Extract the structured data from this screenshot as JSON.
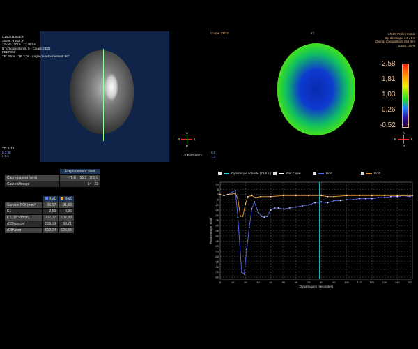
{
  "left_view": {
    "info": [
      "C10021180373",
      "26-avr.-1982 , F",
      "12-déc.-2019 / 13:46:54",
      "N° d'acquisition 8, 6 - Coupe 23/32",
      "FEEPI/M",
      "TE: 30ms - TR 2,0s - Angle de retournement 90°"
    ],
    "bottom": [
      "TD: 1:19",
      "0.3 08",
      "L 0.5"
    ],
    "orient": {
      "a": "A",
      "p": "P",
      "r": "R",
      "l": "L"
    },
    "orient_label": "LE P-51 H112"
  },
  "right_view": {
    "slice": "Coupe 23/32",
    "center_label": "K1",
    "info": [
      "I.R.M. Paris-Hopital",
      "Ep de coupe 4.0 / 0.0",
      "Champ d'acquisition 256 mm",
      "Zoom 100%"
    ],
    "bottom_left": [
      "0.0",
      "1.3"
    ],
    "colorbar": {
      "labels": [
        "2,58",
        "1,81",
        "1,03",
        "0,26",
        "-0,52"
      ]
    },
    "orient": {
      "a": "A",
      "p": "P",
      "r": "R",
      "l": "L"
    }
  },
  "pixel_table": {
    "header": "Emplacement pixel",
    "rows": [
      {
        "label": "Cadre patient (mm)",
        "value": "-75,6 , -55,2 , 109,9"
      },
      {
        "label": "Cadre d'image",
        "value": "64 , 23"
      }
    ]
  },
  "roi_table": {
    "headers": [
      "Roi1",
      "Roi2"
    ],
    "rows": [
      {
        "label": "Surface ROI (mm²)",
        "v": [
          "36,17",
          "31,83"
        ]
      },
      {
        "label": "K1",
        "v": [
          "2,53",
          "0,36"
        ]
      },
      {
        "label": "K2 [10^-3/min]",
        "v": [
          "717,77",
          "102,88"
        ]
      },
      {
        "label": "rCBVuncorr",
        "v": [
          "519,19",
          "69,21"
        ]
      },
      {
        "label": "rCBVcorr",
        "v": [
          "912,24",
          "125,55"
        ]
      }
    ]
  },
  "legend": {
    "current": "Dynamique actuelle (78,6 s )",
    "ref": "Ref Curve",
    "roi1": "Roi1",
    "roi2": "Roi2"
  },
  "colors": {
    "roi1": "#5060e0",
    "roi2": "#e0902a",
    "cursor": "#30c8c8"
  },
  "chart_data": {
    "type": "line",
    "xlabel": "Dynamiques [secondes]",
    "ylabel": "Pourcentage relatif",
    "xlim": [
      0,
      152
    ],
    "ylim": [
      -82,
      12
    ],
    "xticks": [
      0,
      10,
      20,
      30,
      40,
      50,
      60,
      70,
      80,
      90,
      100,
      110,
      120,
      130,
      140,
      150
    ],
    "yticks": [
      10,
      5,
      0,
      -5,
      -10,
      -15,
      -20,
      -25,
      -30,
      -35,
      -40,
      -45,
      -50,
      -55,
      -60,
      -65,
      -70,
      -75,
      -80
    ],
    "cursor_x": 78.6,
    "grid": true,
    "series": [
      {
        "name": "Roi1",
        "x": [
          0,
          3,
          6,
          12,
          14,
          17,
          19,
          21,
          23,
          25,
          27,
          30,
          33,
          35,
          37,
          40,
          43,
          46,
          50,
          55,
          60,
          65,
          70,
          75,
          80,
          85,
          90,
          95,
          100,
          105,
          110,
          115,
          120,
          125,
          130,
          135,
          140,
          145,
          150,
          152
        ],
        "y": [
          0,
          -1,
          0,
          4,
          -22,
          -75,
          -77,
          -53,
          -32,
          -14,
          -7,
          -17,
          -21,
          -22,
          -21,
          -15,
          -13,
          -13,
          -14,
          -13,
          -12,
          -11,
          -10,
          -8,
          -7,
          -8,
          -6,
          -6,
          -5,
          -5,
          -4,
          -4,
          -4,
          -3,
          -3,
          -2,
          -2,
          -1,
          -2,
          -1
        ]
      },
      {
        "name": "Roi2",
        "x": [
          0,
          3,
          6,
          12,
          14,
          16,
          18,
          20,
          22,
          25,
          28,
          32,
          40,
          50,
          60,
          70,
          80,
          85,
          90,
          100,
          110,
          120,
          130,
          140,
          150,
          152
        ],
        "y": [
          0,
          -1,
          0,
          1,
          -4,
          -21,
          -21,
          -9,
          -2,
          -1,
          -3,
          -2,
          -2,
          -1,
          -1,
          -1,
          -1,
          -2,
          -2,
          -1,
          -1,
          -1,
          -1,
          -1,
          -1,
          -1
        ]
      }
    ]
  }
}
